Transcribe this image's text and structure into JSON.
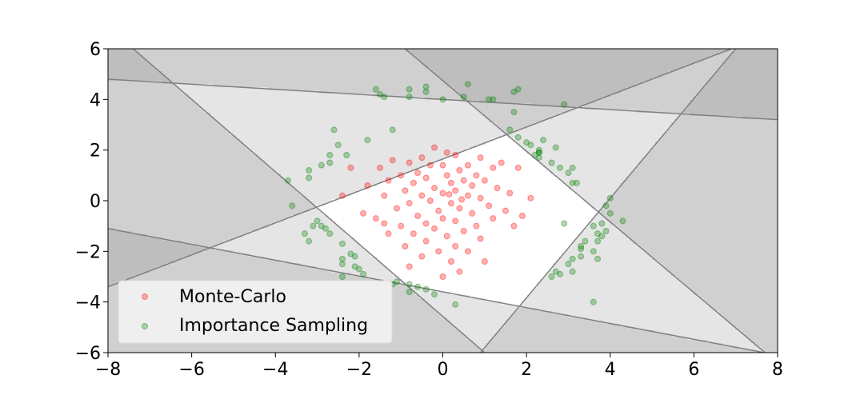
{
  "chart_data": {
    "type": "scatter",
    "title": "",
    "xlabel": "",
    "ylabel": "",
    "xlim": [
      -8,
      8
    ],
    "ylim": [
      -6,
      6
    ],
    "x_ticks": [
      -8,
      -6,
      -4,
      -2,
      0,
      2,
      4,
      6,
      8
    ],
    "y_ticks": [
      -6,
      -4,
      -2,
      0,
      2,
      4,
      6
    ],
    "x_tick_labels": [
      "−8",
      "−6",
      "−4",
      "−2",
      "0",
      "2",
      "4",
      "6",
      "8"
    ],
    "y_tick_labels": [
      "−6",
      "−4",
      "−2",
      "0",
      "2",
      "4",
      "6"
    ],
    "grid": false,
    "legend_position": "lower-left",
    "background_regions": {
      "boundary_lines": [
        {
          "points": [
            [
              -8.0,
              4.8
            ],
            [
              8.0,
              3.2
            ]
          ]
        },
        {
          "points": [
            [
              -8.0,
              -1.1
            ],
            [
              8.0,
              -6.1
            ]
          ]
        },
        {
          "points": [
            [
              -8.0,
              -3.4
            ],
            [
              6.9,
              6.0
            ]
          ]
        },
        {
          "points": [
            [
              -7.4,
              6.0
            ],
            [
              1.0,
              -6.0
            ]
          ]
        },
        {
          "points": [
            [
              -0.9,
              6.0
            ],
            [
              7.7,
              -6.0
            ]
          ]
        },
        {
          "points": [
            [
              0.9,
              -6.0
            ],
            [
              7.0,
              6.0
            ]
          ]
        }
      ],
      "region_shades": [
        "#ffffff",
        "#e5e5e5",
        "#d0d0d0",
        "#bebebe"
      ],
      "line_color": "#808080"
    },
    "series": [
      {
        "name": "Monte-Carlo",
        "color": "#ff0000",
        "points": [
          [
            -0.2,
            2.1
          ],
          [
            0.1,
            1.9
          ],
          [
            0.3,
            1.8
          ],
          [
            -0.5,
            1.7
          ],
          [
            -1.2,
            1.6
          ],
          [
            0.9,
            1.7
          ],
          [
            1.4,
            1.5
          ],
          [
            -0.8,
            1.5
          ],
          [
            0.6,
            1.4
          ],
          [
            -0.3,
            1.4
          ],
          [
            0.0,
            1.4
          ],
          [
            1.2,
            1.3
          ],
          [
            -1.5,
            1.3
          ],
          [
            -2.2,
            1.3
          ],
          [
            0.4,
            1.2
          ],
          [
            -0.6,
            1.1
          ],
          [
            0.8,
            1.0
          ],
          [
            -1.0,
            1.0
          ],
          [
            0.1,
            1.0
          ],
          [
            1.8,
            1.3
          ],
          [
            0.5,
            0.8
          ],
          [
            -0.4,
            0.9
          ],
          [
            0.2,
            0.7
          ],
          [
            -0.7,
            0.7
          ],
          [
            1.0,
            0.8
          ],
          [
            -1.3,
            0.8
          ],
          [
            -1.8,
            0.6
          ],
          [
            0.7,
            0.6
          ],
          [
            -0.2,
            0.5
          ],
          [
            0.3,
            0.4
          ],
          [
            1.3,
            0.5
          ],
          [
            -0.9,
            0.4
          ],
          [
            0.0,
            0.3
          ],
          [
            -0.5,
            0.2
          ],
          [
            0.6,
            0.2
          ],
          [
            1.6,
            0.3
          ],
          [
            -1.4,
            0.2
          ],
          [
            -2.4,
            0.2
          ],
          [
            0.9,
            0.1
          ],
          [
            -0.3,
            0.0
          ],
          [
            0.2,
            -0.1
          ],
          [
            -0.8,
            -0.1
          ],
          [
            1.1,
            -0.2
          ],
          [
            0.4,
            -0.3
          ],
          [
            -1.1,
            -0.3
          ],
          [
            -0.1,
            -0.4
          ],
          [
            1.5,
            -0.4
          ],
          [
            0.7,
            -0.5
          ],
          [
            -0.6,
            -0.6
          ],
          [
            0.0,
            -0.7
          ],
          [
            -1.6,
            -0.7
          ],
          [
            1.2,
            -0.7
          ],
          [
            0.3,
            -0.8
          ],
          [
            -0.4,
            -0.9
          ],
          [
            0.8,
            -1.0
          ],
          [
            -1.0,
            -1.0
          ],
          [
            1.7,
            -1.0
          ],
          [
            -0.2,
            -1.1
          ],
          [
            0.5,
            -1.2
          ],
          [
            -0.7,
            -1.3
          ],
          [
            0.1,
            -1.4
          ],
          [
            -1.3,
            -1.3
          ],
          [
            0.9,
            -1.5
          ],
          [
            -0.4,
            -1.6
          ],
          [
            0.3,
            -1.8
          ],
          [
            -0.9,
            -1.8
          ],
          [
            0.6,
            -2.0
          ],
          [
            -0.1,
            -2.0
          ],
          [
            -0.5,
            -2.2
          ],
          [
            0.2,
            -2.4
          ],
          [
            -0.8,
            -2.6
          ],
          [
            0.4,
            -2.8
          ],
          [
            0.0,
            -3.0
          ],
          [
            1.0,
            -2.4
          ],
          [
            -1.4,
            -0.9
          ],
          [
            2.1,
            0.1
          ],
          [
            1.9,
            -0.6
          ],
          [
            -1.9,
            -0.5
          ],
          [
            0.15,
            0.25
          ],
          [
            0.45,
            0.05
          ]
        ]
      },
      {
        "name": "Importance Sampling",
        "color": "#008000",
        "points": [
          [
            -1.6,
            4.4
          ],
          [
            -1.5,
            4.2
          ],
          [
            -0.8,
            4.4
          ],
          [
            -0.8,
            4.1
          ],
          [
            -0.4,
            4.3
          ],
          [
            -0.4,
            4.5
          ],
          [
            0.0,
            4.0
          ],
          [
            0.5,
            4.1
          ],
          [
            0.6,
            4.6
          ],
          [
            1.1,
            4.0
          ],
          [
            1.2,
            4.0
          ],
          [
            1.7,
            4.3
          ],
          [
            1.8,
            4.4
          ],
          [
            2.9,
            3.8
          ],
          [
            1.7,
            3.5
          ],
          [
            -1.2,
            2.8
          ],
          [
            -1.8,
            2.4
          ],
          [
            -2.6,
            2.8
          ],
          [
            -2.5,
            2.2
          ],
          [
            -2.7,
            1.8
          ],
          [
            -2.3,
            1.8
          ],
          [
            -2.7,
            1.5
          ],
          [
            -2.9,
            1.4
          ],
          [
            -3.2,
            1.2
          ],
          [
            -3.2,
            0.9
          ],
          [
            -3.7,
            0.8
          ],
          [
            -3.6,
            -0.2
          ],
          [
            1.6,
            2.8
          ],
          [
            1.8,
            2.5
          ],
          [
            2.0,
            2.3
          ],
          [
            2.1,
            2.2
          ],
          [
            2.4,
            2.4
          ],
          [
            2.3,
            2.0
          ],
          [
            2.7,
            2.1
          ],
          [
            2.3,
            1.9
          ],
          [
            2.2,
            1.8
          ],
          [
            2.6,
            1.5
          ],
          [
            2.8,
            1.3
          ],
          [
            3.0,
            1.1
          ],
          [
            3.1,
            1.3
          ],
          [
            3.1,
            0.7
          ],
          [
            3.2,
            0.7
          ],
          [
            2.9,
            -0.9
          ],
          [
            4.0,
            0.1
          ],
          [
            3.9,
            -0.2
          ],
          [
            4.0,
            -0.5
          ],
          [
            4.3,
            -0.8
          ],
          [
            3.8,
            -0.9
          ],
          [
            3.6,
            -1.0
          ],
          [
            3.9,
            -1.2
          ],
          [
            3.7,
            -1.3
          ],
          [
            3.8,
            -1.4
          ],
          [
            3.4,
            -1.6
          ],
          [
            3.3,
            -1.8
          ],
          [
            3.6,
            -2.0
          ],
          [
            3.3,
            -2.2
          ],
          [
            3.1,
            -2.3
          ],
          [
            3.0,
            -2.5
          ],
          [
            2.7,
            -2.8
          ],
          [
            2.8,
            -2.9
          ],
          [
            3.1,
            -2.8
          ],
          [
            3.7,
            -2.3
          ],
          [
            3.6,
            -4.0
          ],
          [
            2.6,
            -3.0
          ],
          [
            -3.0,
            -0.8
          ],
          [
            -3.1,
            -1.0
          ],
          [
            -2.9,
            -1.0
          ],
          [
            -2.8,
            -1.1
          ],
          [
            -2.7,
            -1.3
          ],
          [
            -3.3,
            -1.3
          ],
          [
            -3.2,
            -1.6
          ],
          [
            -2.4,
            -1.7
          ],
          [
            -2.2,
            -2.1
          ],
          [
            -2.1,
            -2.2
          ],
          [
            -2.4,
            -2.3
          ],
          [
            -2.4,
            -2.5
          ],
          [
            -2.1,
            -2.6
          ],
          [
            -2.0,
            -2.7
          ],
          [
            -1.9,
            -2.9
          ],
          [
            -2.4,
            -3.0
          ],
          [
            -1.1,
            -3.2
          ],
          [
            -1.2,
            -3.3
          ],
          [
            -0.8,
            -3.3
          ],
          [
            -0.8,
            -3.6
          ],
          [
            -0.2,
            -3.7
          ],
          [
            0.3,
            -4.1
          ],
          [
            -0.4,
            -3.5
          ],
          [
            -0.6,
            -3.4
          ],
          [
            2.3,
            1.7
          ],
          [
            2.3,
            1.9
          ],
          [
            -1.4,
            4.1
          ],
          [
            3.3,
            -1.9
          ],
          [
            3.7,
            -1.6
          ]
        ]
      }
    ],
    "legend": [
      {
        "label": "Monte-Carlo"
      },
      {
        "label": "Importance Sampling"
      }
    ]
  }
}
